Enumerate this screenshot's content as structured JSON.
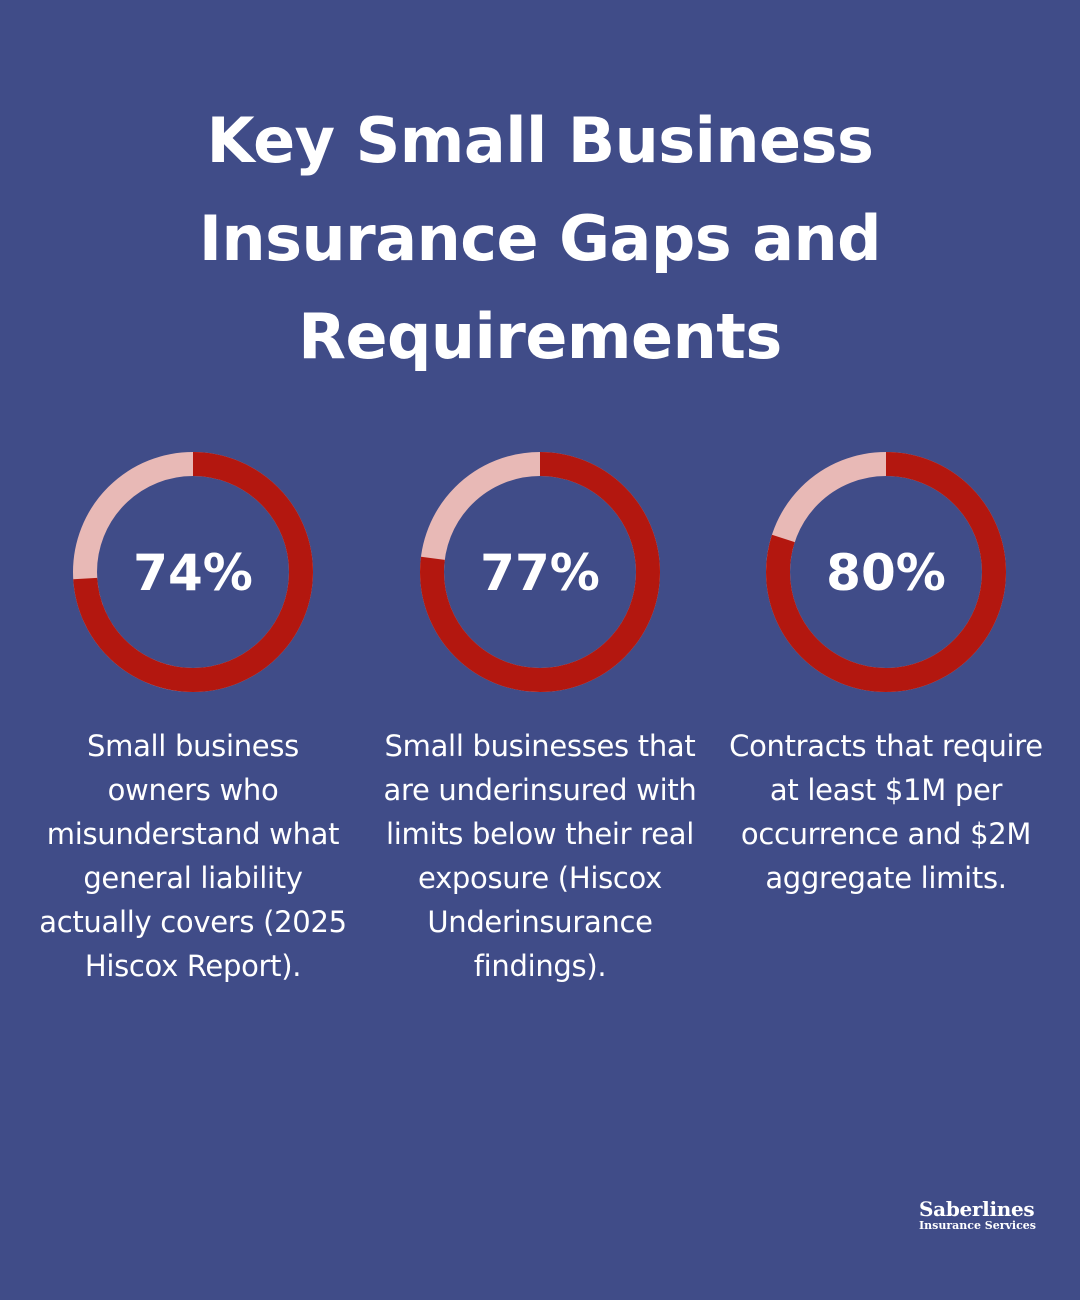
{
  "title": "Key Small Business Insurance Gaps and Requirements",
  "colors": {
    "background": "#404c88",
    "filled": "#b3170f",
    "remaining": "#e8b9b6",
    "text": "#ffffff"
  },
  "chart_data": [
    {
      "type": "pie",
      "value": 74,
      "max": 100,
      "label": "74%",
      "description": "Small business owners who misunderstand what general liability actually covers (2025 Hiscox Report)."
    },
    {
      "type": "pie",
      "value": 77,
      "max": 100,
      "label": "77%",
      "description": "Small businesses that are underinsured with limits below their real exposure (Hiscox Underinsurance findings)."
    },
    {
      "type": "pie",
      "value": 80,
      "max": 100,
      "label": "80%",
      "description": "Contracts that require at least $1M per occurrence and $2M aggregate limits."
    }
  ],
  "brand": {
    "name": "Saberlines",
    "subtitle": "Insurance Services"
  }
}
